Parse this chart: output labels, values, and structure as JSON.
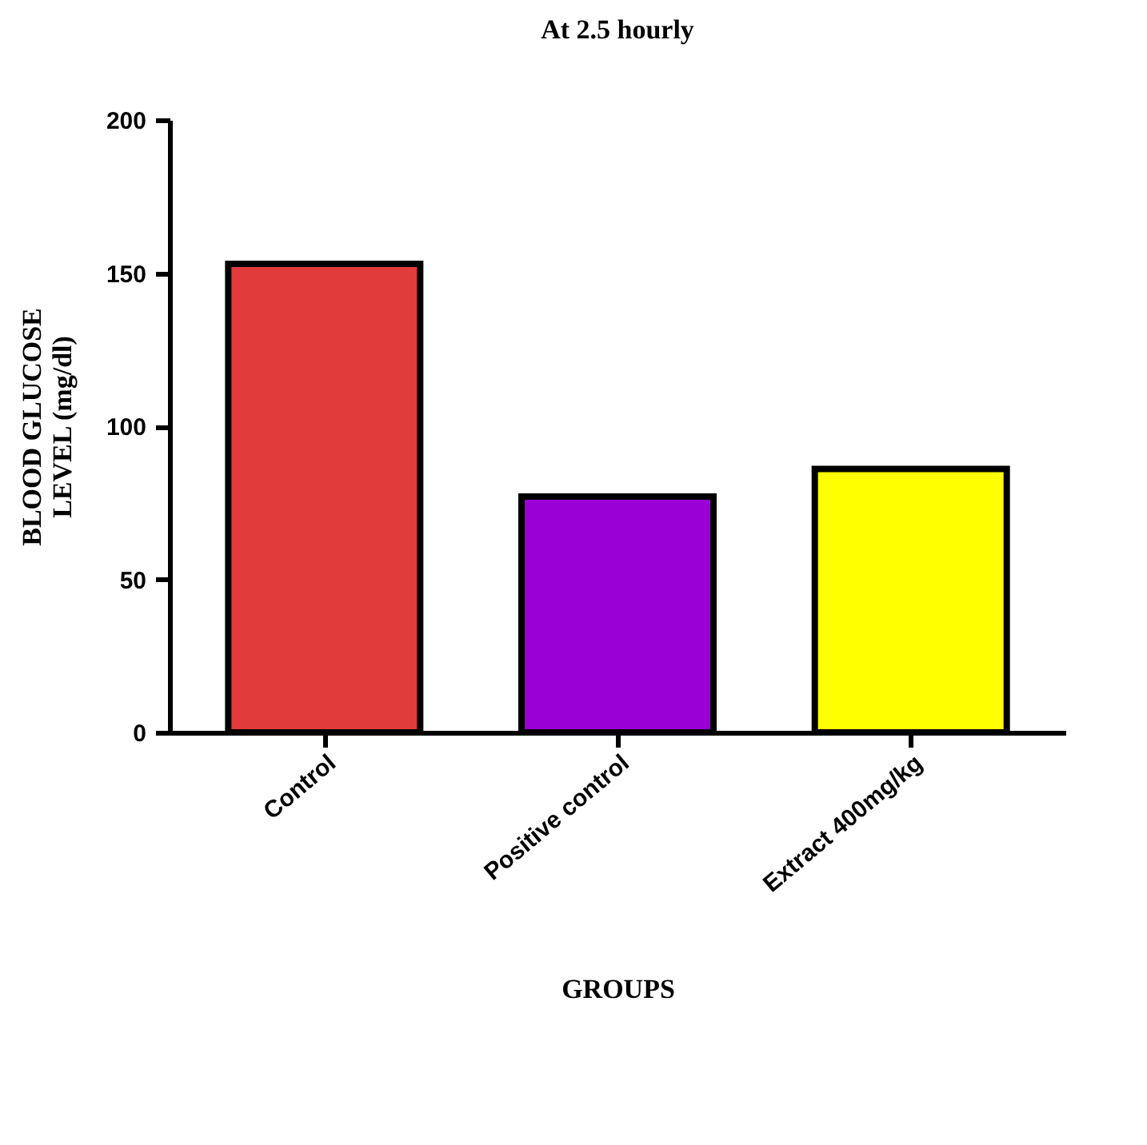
{
  "chart_data": {
    "type": "bar",
    "title": "At 2.5 hourly",
    "xlabel": "GROUPS",
    "ylabel": "BLOOD GLUCOSE\nLEVEL (mg/dl)",
    "categories": [
      "Control",
      "Positive control",
      "Extract 400mg/kg"
    ],
    "values": [
      153,
      77,
      86
    ],
    "colors": [
      "#e23b3b",
      "#9a00d6",
      "#ffff00"
    ],
    "ylim": [
      0,
      200
    ],
    "yticks": [
      0,
      50,
      100,
      150,
      200
    ],
    "grid": false,
    "legend": false
  }
}
